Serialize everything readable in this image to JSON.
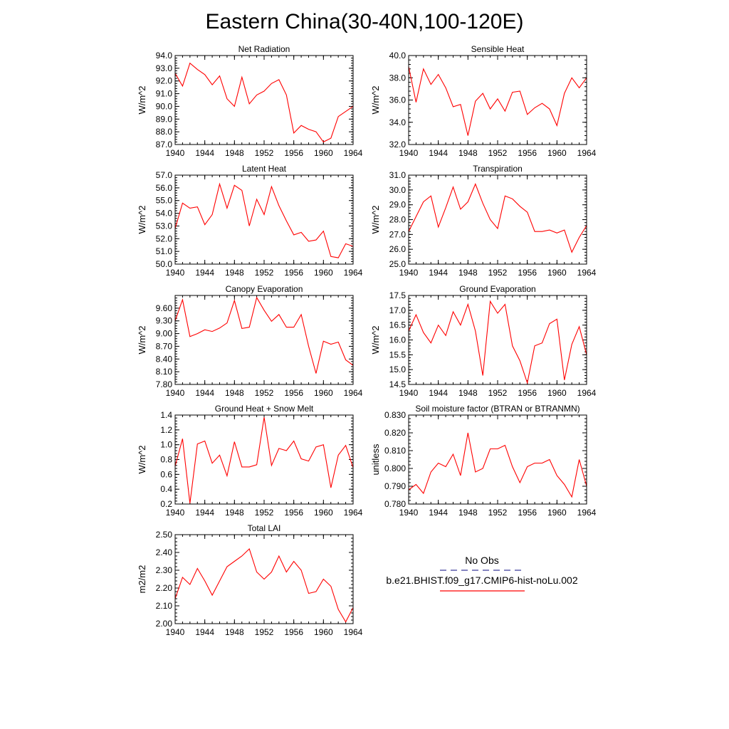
{
  "figure": {
    "title": "Eastern China(30-40N,100-120E)"
  },
  "legend": {
    "entries": [
      {
        "label": "No Obs",
        "color": "#3b3b9a",
        "style": "dashed"
      },
      {
        "label": "b.e21.BHIST.f09_g17.CMIP6-hist-noLu.002",
        "color": "#ff0000",
        "style": "solid"
      }
    ]
  },
  "chart_data": [
    {
      "type": "line",
      "title": "Net Radiation",
      "ylabel": "W/m^2",
      "xlim": [
        1940,
        1964
      ],
      "ylim": [
        87.0,
        94.0
      ],
      "xticks": [
        1940,
        1944,
        1948,
        1952,
        1956,
        1960,
        1964
      ],
      "yticks": [
        "87.0",
        "88.0",
        "89.0",
        "90.0",
        "91.0",
        "92.0",
        "93.0",
        "94.0"
      ],
      "x": [
        1940,
        1941,
        1942,
        1943,
        1944,
        1945,
        1946,
        1947,
        1948,
        1949,
        1950,
        1951,
        1952,
        1953,
        1954,
        1955,
        1956,
        1957,
        1958,
        1959,
        1960,
        1961,
        1962,
        1963,
        1964
      ],
      "series": [
        {
          "color": "#ff0000",
          "values": [
            92.6,
            91.6,
            93.4,
            92.9,
            92.5,
            91.7,
            92.4,
            90.6,
            90.0,
            92.3,
            90.2,
            90.9,
            91.2,
            91.8,
            92.1,
            90.9,
            87.9,
            88.5,
            88.2,
            88.0,
            87.2,
            87.5,
            89.2,
            89.6,
            90.0
          ]
        }
      ]
    },
    {
      "type": "line",
      "title": "Sensible Heat",
      "ylabel": "W/m^2",
      "xlim": [
        1940,
        1964
      ],
      "ylim": [
        32.0,
        40.0
      ],
      "xticks": [
        1940,
        1944,
        1948,
        1952,
        1956,
        1960,
        1964
      ],
      "yticks": [
        "32.0",
        "34.0",
        "36.0",
        "38.0",
        "40.0"
      ],
      "x": [
        1940,
        1941,
        1942,
        1943,
        1944,
        1945,
        1946,
        1947,
        1948,
        1949,
        1950,
        1951,
        1952,
        1953,
        1954,
        1955,
        1956,
        1957,
        1958,
        1959,
        1960,
        1961,
        1962,
        1963,
        1964
      ],
      "series": [
        {
          "color": "#ff0000",
          "values": [
            39.0,
            35.8,
            38.8,
            37.4,
            38.3,
            37.1,
            35.4,
            35.6,
            32.8,
            35.9,
            36.6,
            35.2,
            36.1,
            35.0,
            36.7,
            36.8,
            34.7,
            35.3,
            35.7,
            35.2,
            33.7,
            36.6,
            38.0,
            37.1,
            38.0
          ]
        }
      ]
    },
    {
      "type": "line",
      "title": "Latent Heat",
      "ylabel": "W/m^2",
      "xlim": [
        1940,
        1964
      ],
      "ylim": [
        50.0,
        57.0
      ],
      "xticks": [
        1940,
        1944,
        1948,
        1952,
        1956,
        1960,
        1964
      ],
      "yticks": [
        "50.0",
        "51.0",
        "52.0",
        "53.0",
        "54.0",
        "55.0",
        "56.0",
        "57.0"
      ],
      "x": [
        1940,
        1941,
        1942,
        1943,
        1944,
        1945,
        1946,
        1947,
        1948,
        1949,
        1950,
        1951,
        1952,
        1953,
        1954,
        1955,
        1956,
        1957,
        1958,
        1959,
        1960,
        1961,
        1962,
        1963,
        1964
      ],
      "series": [
        {
          "color": "#ff0000",
          "values": [
            52.8,
            54.8,
            54.4,
            54.5,
            53.1,
            53.9,
            56.3,
            54.4,
            56.2,
            55.8,
            53.0,
            55.1,
            53.9,
            56.1,
            54.6,
            53.4,
            52.3,
            52.5,
            51.8,
            51.9,
            52.6,
            50.6,
            50.5,
            51.6,
            51.4
          ]
        }
      ]
    },
    {
      "type": "line",
      "title": "Transpiration",
      "ylabel": "W/m^2",
      "xlim": [
        1940,
        1964
      ],
      "ylim": [
        25.0,
        31.0
      ],
      "xticks": [
        1940,
        1944,
        1948,
        1952,
        1956,
        1960,
        1964
      ],
      "yticks": [
        "25.0",
        "26.0",
        "27.0",
        "28.0",
        "29.0",
        "30.0",
        "31.0"
      ],
      "x": [
        1940,
        1941,
        1942,
        1943,
        1944,
        1945,
        1946,
        1947,
        1948,
        1949,
        1950,
        1951,
        1952,
        1953,
        1954,
        1955,
        1956,
        1957,
        1958,
        1959,
        1960,
        1961,
        1962,
        1963,
        1964
      ],
      "series": [
        {
          "color": "#ff0000",
          "values": [
            27.2,
            28.2,
            29.2,
            29.6,
            27.5,
            28.8,
            30.2,
            28.7,
            29.2,
            30.4,
            29.1,
            28.0,
            27.4,
            29.6,
            29.4,
            28.9,
            28.5,
            27.2,
            27.2,
            27.3,
            27.1,
            27.3,
            25.8,
            26.8,
            27.6
          ]
        }
      ]
    },
    {
      "type": "line",
      "title": "Canopy Evaporation",
      "ylabel": "W/m^2",
      "xlim": [
        1940,
        1964
      ],
      "ylim": [
        7.8,
        9.9
      ],
      "xticks": [
        1940,
        1944,
        1948,
        1952,
        1956,
        1960,
        1964
      ],
      "yticks": [
        "7.80",
        "8.10",
        "8.40",
        "8.70",
        "9.00",
        "9.30",
        "9.60"
      ],
      "x": [
        1940,
        1941,
        1942,
        1943,
        1944,
        1945,
        1946,
        1947,
        1948,
        1949,
        1950,
        1951,
        1952,
        1953,
        1954,
        1955,
        1956,
        1957,
        1958,
        1959,
        1960,
        1961,
        1962,
        1963,
        1964
      ],
      "series": [
        {
          "color": "#ff0000",
          "values": [
            9.3,
            9.8,
            8.93,
            9.0,
            9.09,
            9.05,
            9.13,
            9.25,
            9.78,
            9.12,
            9.15,
            9.85,
            9.55,
            9.29,
            9.45,
            9.15,
            9.15,
            9.45,
            8.7,
            8.06,
            8.82,
            8.75,
            8.8,
            8.38,
            8.25
          ]
        }
      ]
    },
    {
      "type": "line",
      "title": "Ground Evaporation",
      "ylabel": "W/m^2",
      "xlim": [
        1940,
        1964
      ],
      "ylim": [
        14.5,
        17.5
      ],
      "xticks": [
        1940,
        1944,
        1948,
        1952,
        1956,
        1960,
        1964
      ],
      "yticks": [
        "14.5",
        "15.0",
        "15.5",
        "16.0",
        "16.5",
        "17.0",
        "17.5"
      ],
      "x": [
        1940,
        1941,
        1942,
        1943,
        1944,
        1945,
        1946,
        1947,
        1948,
        1949,
        1950,
        1951,
        1952,
        1953,
        1954,
        1955,
        1956,
        1957,
        1958,
        1959,
        1960,
        1961,
        1962,
        1963,
        1964
      ],
      "series": [
        {
          "color": "#ff0000",
          "values": [
            16.3,
            16.85,
            16.25,
            15.9,
            16.5,
            16.15,
            16.95,
            16.5,
            17.2,
            16.3,
            14.8,
            17.3,
            16.9,
            17.2,
            15.8,
            15.3,
            14.55,
            15.8,
            15.9,
            16.55,
            16.7,
            14.65,
            15.85,
            16.45,
            15.5
          ]
        }
      ]
    },
    {
      "type": "line",
      "title": "Ground Heat + Snow Melt",
      "ylabel": "W/m^2",
      "xlim": [
        1940,
        1964
      ],
      "ylim": [
        0.2,
        1.4
      ],
      "xticks": [
        1940,
        1944,
        1948,
        1952,
        1956,
        1960,
        1964
      ],
      "yticks": [
        "0.2",
        "0.4",
        "0.6",
        "0.8",
        "1.0",
        "1.2",
        "1.4"
      ],
      "x": [
        1940,
        1941,
        1942,
        1943,
        1944,
        1945,
        1946,
        1947,
        1948,
        1949,
        1950,
        1951,
        1952,
        1953,
        1954,
        1955,
        1956,
        1957,
        1958,
        1959,
        1960,
        1961,
        1962,
        1963,
        1964
      ],
      "series": [
        {
          "color": "#ff0000",
          "values": [
            0.71,
            1.08,
            0.21,
            1.01,
            1.05,
            0.75,
            0.86,
            0.58,
            1.04,
            0.7,
            0.7,
            0.73,
            1.37,
            0.72,
            0.95,
            0.92,
            1.05,
            0.81,
            0.78,
            0.97,
            1.0,
            0.42,
            0.86,
            0.99,
            0.69
          ]
        }
      ]
    },
    {
      "type": "line",
      "title": "Soil moisture factor (BTRAN or BTRANMN)",
      "ylabel": "unitless",
      "xlim": [
        1940,
        1964
      ],
      "ylim": [
        0.78,
        0.83
      ],
      "xticks": [
        1940,
        1944,
        1948,
        1952,
        1956,
        1960,
        1964
      ],
      "yticks": [
        "0.780",
        "0.790",
        "0.800",
        "0.810",
        "0.820",
        "0.830"
      ],
      "x": [
        1940,
        1941,
        1942,
        1943,
        1944,
        1945,
        1946,
        1947,
        1948,
        1949,
        1950,
        1951,
        1952,
        1953,
        1954,
        1955,
        1956,
        1957,
        1958,
        1959,
        1960,
        1961,
        1962,
        1963,
        1964
      ],
      "series": [
        {
          "color": "#ff0000",
          "values": [
            0.788,
            0.791,
            0.786,
            0.798,
            0.803,
            0.801,
            0.808,
            0.796,
            0.82,
            0.798,
            0.8,
            0.811,
            0.811,
            0.813,
            0.801,
            0.792,
            0.801,
            0.803,
            0.803,
            0.805,
            0.796,
            0.791,
            0.784,
            0.805,
            0.79
          ]
        }
      ]
    },
    {
      "type": "line",
      "title": "Total LAI",
      "ylabel": "m2/m2",
      "xlim": [
        1940,
        1964
      ],
      "ylim": [
        2.0,
        2.5
      ],
      "xticks": [
        1940,
        1944,
        1948,
        1952,
        1956,
        1960,
        1964
      ],
      "yticks": [
        "2.00",
        "2.10",
        "2.20",
        "2.30",
        "2.40",
        "2.50"
      ],
      "x": [
        1940,
        1941,
        1942,
        1943,
        1944,
        1945,
        1946,
        1947,
        1948,
        1949,
        1950,
        1951,
        1952,
        1953,
        1954,
        1955,
        1956,
        1957,
        1958,
        1959,
        1960,
        1961,
        1962,
        1963,
        1964
      ],
      "series": [
        {
          "color": "#ff0000",
          "values": [
            2.14,
            2.26,
            2.22,
            2.31,
            2.24,
            2.16,
            2.24,
            2.32,
            2.35,
            2.38,
            2.42,
            2.29,
            2.25,
            2.29,
            2.38,
            2.29,
            2.35,
            2.3,
            2.17,
            2.18,
            2.25,
            2.21,
            2.08,
            2.01,
            2.09
          ]
        }
      ]
    }
  ]
}
